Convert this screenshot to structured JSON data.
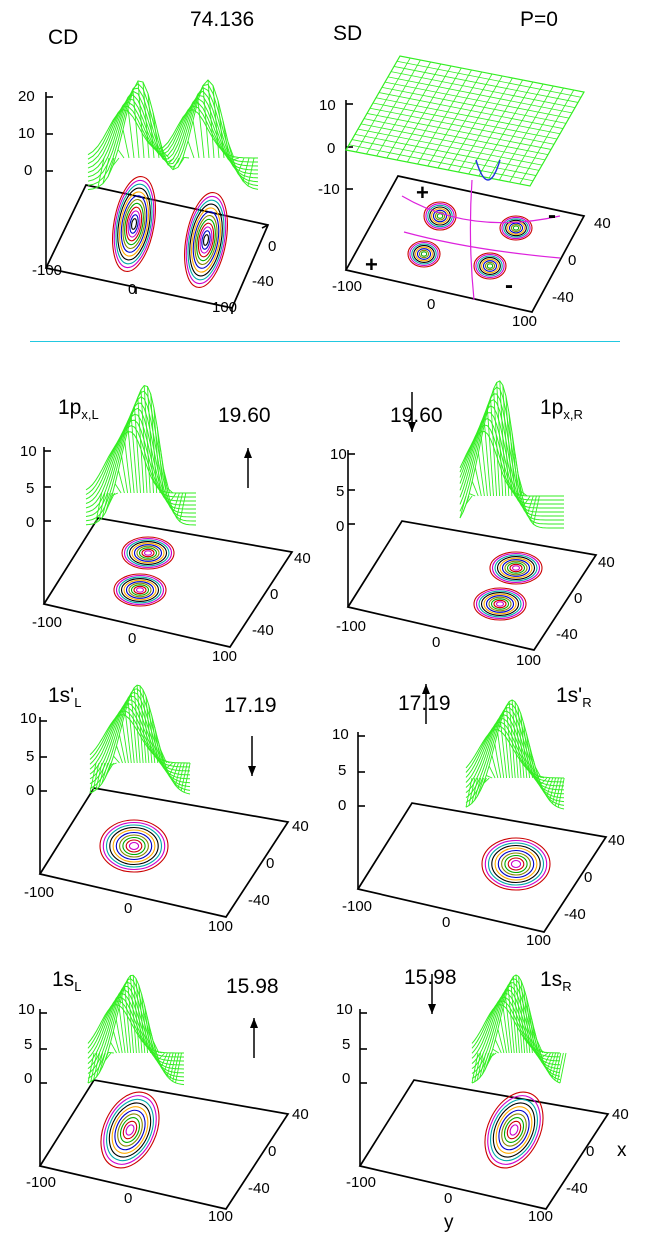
{
  "top": {
    "cd_label": "CD",
    "energy": "74.136",
    "sd_label": "SD",
    "parity": "P=0",
    "cd_zticks": [
      "20",
      "10",
      "0"
    ],
    "sd_zticks": [
      "10",
      "0",
      "-10"
    ],
    "sd_signs": [
      "+",
      "-",
      "+",
      "-"
    ]
  },
  "common_ticks": {
    "y_neg": "-100",
    "y_mid": "0",
    "y_pos": "100",
    "x_pos": "40",
    "x_mid": "0",
    "x_neg": "-40"
  },
  "orbital_zticks": [
    "10",
    "5",
    "0"
  ],
  "axis_names": {
    "x": "x",
    "y": "y"
  },
  "orbitals": [
    {
      "label_main": "1p",
      "label_sub": "x,L",
      "energy": "19.60",
      "spin": "up"
    },
    {
      "label_main": "1p",
      "label_sub": "x,R",
      "energy": "19.60",
      "spin": "down"
    },
    {
      "label_main": "1s'",
      "label_sub": "L",
      "energy": "17.19",
      "spin": "down"
    },
    {
      "label_main": "1s'",
      "label_sub": "R",
      "energy": "17.19",
      "spin": "up"
    },
    {
      "label_main": "1s",
      "label_sub": "L",
      "energy": "15.98",
      "spin": "up"
    },
    {
      "label_main": "1s",
      "label_sub": "R",
      "energy": "15.98",
      "spin": "down"
    }
  ],
  "colors": {
    "surface": "#33ee22",
    "separator": "#22c8e0",
    "negative_surface": "#2233dd"
  }
}
